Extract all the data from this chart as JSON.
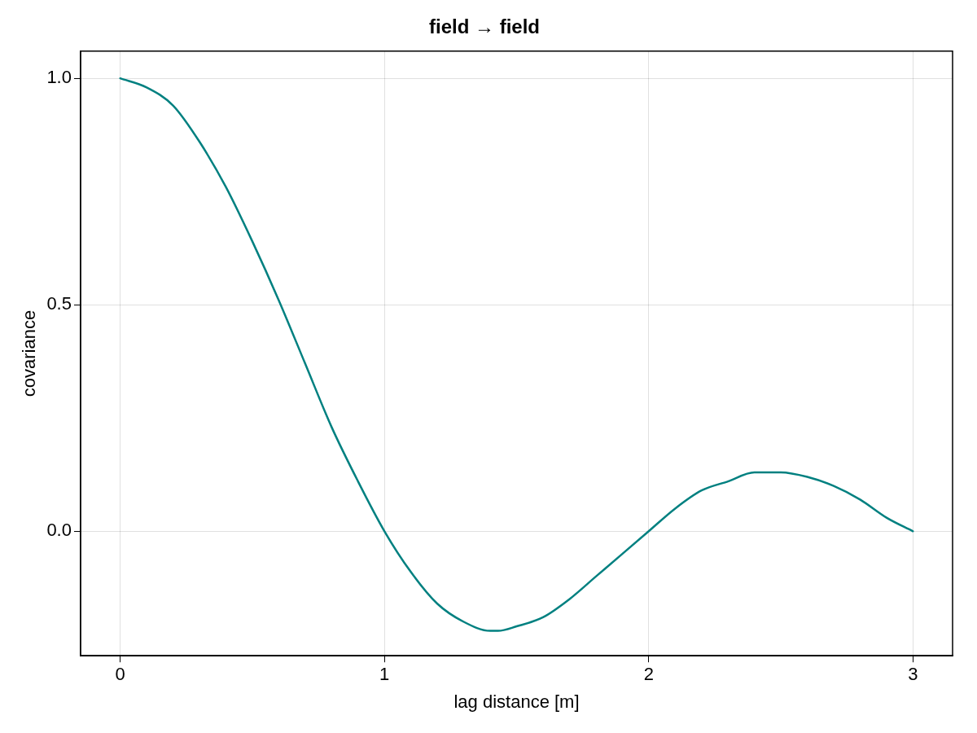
{
  "chart_data": {
    "type": "line",
    "title": "field → field",
    "xlabel": "lag distance [m]",
    "ylabel": "covariance",
    "x": [
      0,
      0.1,
      0.2,
      0.3,
      0.4,
      0.5,
      0.6,
      0.7,
      0.8,
      0.9,
      1.0,
      1.1,
      1.2,
      1.3,
      1.4,
      1.43,
      1.5,
      1.6,
      1.7,
      1.8,
      1.9,
      2.0,
      2.1,
      2.2,
      2.3,
      2.4,
      2.46,
      2.5,
      2.6,
      2.7,
      2.8,
      2.9,
      3.0
    ],
    "series": [
      {
        "color": "#008080",
        "values": [
          1.0,
          0.98,
          0.94,
          0.86,
          0.76,
          0.64,
          0.51,
          0.37,
          0.23,
          0.11,
          0.0,
          -0.09,
          -0.16,
          -0.2,
          -0.22,
          -0.22,
          -0.21,
          -0.19,
          -0.15,
          -0.1,
          -0.05,
          0.0,
          0.05,
          0.09,
          0.11,
          0.13,
          0.13,
          0.13,
          0.12,
          0.1,
          0.07,
          0.03,
          0.0
        ]
      }
    ],
    "xlim": [
      -0.15,
      3.15
    ],
    "ylim": [
      -0.275,
      1.06
    ],
    "xticks": [
      0,
      1,
      2,
      3
    ],
    "yticks": [
      {
        "value": 0,
        "label": "0.0"
      },
      {
        "value": 0.5,
        "label": "0.5"
      },
      {
        "value": 1,
        "label": "1.0"
      }
    ],
    "grid": true,
    "legend": false,
    "marker": "none",
    "line_style": "solid"
  }
}
